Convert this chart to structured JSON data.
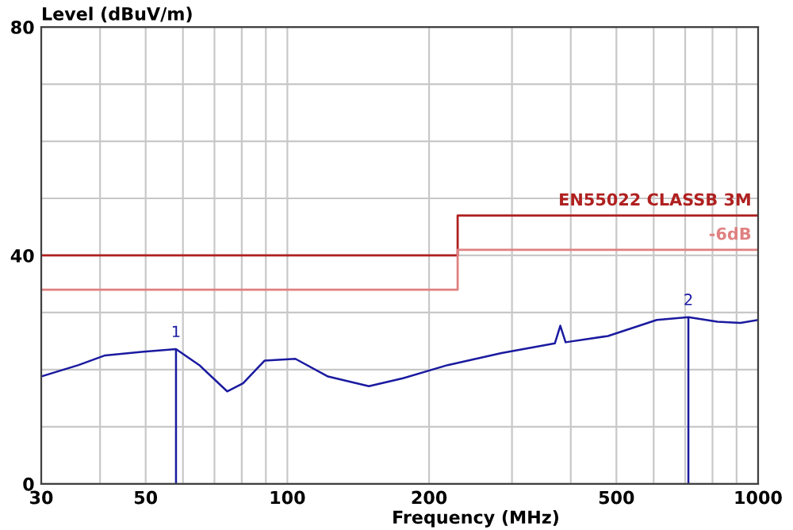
{
  "chart_data": {
    "type": "line",
    "ylabel": "Level (dBuV/m)",
    "xlabel": "Frequency (MHz)",
    "log": "x",
    "grid": true,
    "legend": false,
    "marker": "none",
    "line_style": "solid",
    "xlim": [
      30,
      1000
    ],
    "ylim": [
      0,
      80
    ],
    "xticks": [
      30,
      {
        "value": 40,
        "label": null
      },
      50,
      {
        "value": 60,
        "label": null
      },
      {
        "value": 70,
        "label": null
      },
      {
        "value": 80,
        "label": null
      },
      {
        "value": 90,
        "label": null
      },
      100,
      200,
      {
        "value": 300,
        "label": null
      },
      {
        "value": 400,
        "label": null
      },
      500,
      {
        "value": 600,
        "label": null
      },
      {
        "value": 700,
        "label": null
      },
      {
        "value": 800,
        "label": null
      },
      {
        "value": 900,
        "label": null
      },
      1000
    ],
    "yticks": [
      0,
      {
        "value": 10,
        "label": null
      },
      {
        "value": 20,
        "label": null
      },
      {
        "value": 30,
        "label": null
      },
      40,
      {
        "value": 50,
        "label": null
      },
      {
        "value": 60,
        "label": null
      },
      {
        "value": 70,
        "label": null
      },
      80
    ],
    "series": [
      {
        "color": "#1a1aa0",
        "x": [
          30,
          36,
          41,
          49,
          58,
          65,
          74.5,
          80.5,
          89.5,
          104,
          122,
          149,
          176,
          219,
          285,
          370,
          380,
          390,
          480,
          609,
          711,
          820,
          917,
          1000
        ],
        "values": [
          18.8,
          20.8,
          22.5,
          23.1,
          23.6,
          20.8,
          16.2,
          17.6,
          21.6,
          21.9,
          18.8,
          17.1,
          18.5,
          20.8,
          22.9,
          24.6,
          27.7,
          24.8,
          25.9,
          28.7,
          29.2,
          28.4,
          28.2,
          28.7
        ]
      },
      {
        "name": "EN55022 CLASSB 3M",
        "type": "step",
        "color": "#b02020",
        "x": [
          30,
          230,
          1000
        ],
        "values": [
          40,
          47,
          47
        ]
      },
      {
        "name": "-6dB",
        "type": "step",
        "color": "#e08080",
        "x": [
          30,
          230,
          1000
        ],
        "values": [
          34,
          41,
          41
        ]
      }
    ],
    "annotations": [
      {
        "text": "1",
        "x": 58,
        "y": 23.6
      },
      {
        "text": "2",
        "x": 711,
        "y": 29.2
      }
    ]
  }
}
